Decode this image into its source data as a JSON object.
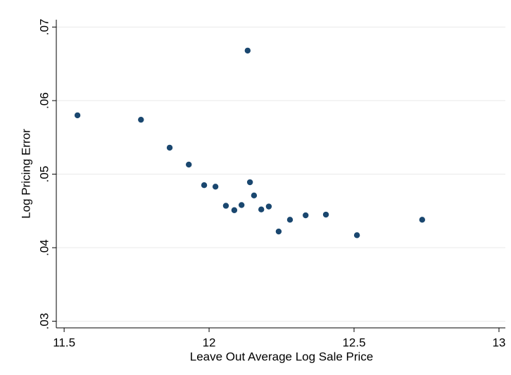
{
  "chart_data": {
    "type": "scatter",
    "x_label": "Leave Out Average Log Sale Price",
    "y_label": "Log Pricing Error",
    "color": "#1a476f",
    "grid": true,
    "xlim": [
      11.473,
      13.022
    ],
    "ylim": [
      0.0291,
      0.071
    ],
    "xticks": [
      11.5,
      12,
      12.5,
      13
    ],
    "yticks": [
      {
        "value": 0.03,
        "label": ".03"
      },
      {
        "value": 0.04,
        "label": ".04"
      },
      {
        "value": 0.05,
        "label": ".05"
      },
      {
        "value": 0.06,
        "label": ".06"
      },
      {
        "value": 0.07,
        "label": ".07"
      }
    ],
    "x": [
      11.546,
      11.765,
      11.864,
      11.93,
      11.983,
      12.022,
      12.058,
      12.087,
      12.112,
      12.133,
      12.141,
      12.155,
      12.18,
      12.206,
      12.24,
      12.279,
      12.333,
      12.403,
      12.51,
      12.735
    ],
    "values": [
      0.058,
      0.0574,
      0.0536,
      0.0513,
      0.0485,
      0.0483,
      0.0457,
      0.0451,
      0.0458,
      0.0668,
      0.0489,
      0.0471,
      0.0452,
      0.0456,
      0.0422,
      0.0438,
      0.0444,
      0.0445,
      0.0417,
      0.0438
    ]
  }
}
